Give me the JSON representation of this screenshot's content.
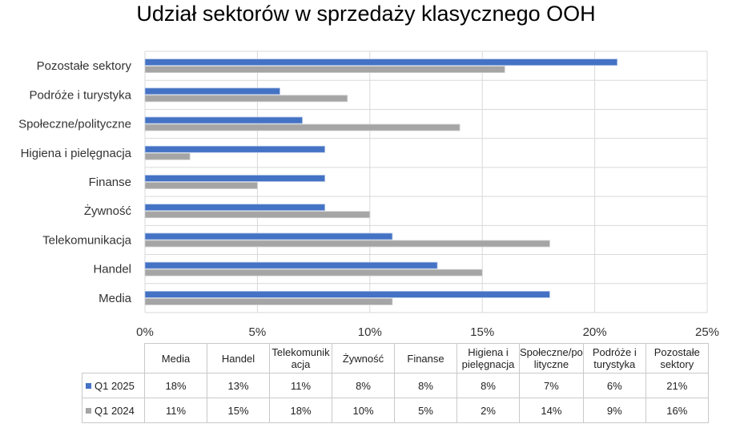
{
  "chart_data": {
    "type": "bar",
    "orientation": "horizontal",
    "title": "Udział sektorów w sprzedaży klasycznego OOH",
    "categories": [
      "Media",
      "Handel",
      "Telekomunikacja",
      "Żywność",
      "Finanse",
      "Higiena i pielęgnacja",
      "Społeczne/polityczne",
      "Podróże i turystyka",
      "Pozostałe sektory"
    ],
    "table_headers": [
      "Media",
      "Handel",
      "Telekomunik acja",
      "Żywność",
      "Finanse",
      "Higiena i pielęgnacja",
      "Społeczne/po lityczne",
      "Podróże i turystyka",
      "Pozostałe sektory"
    ],
    "series": [
      {
        "name": "Q1 2025",
        "color": "#4472c4",
        "values": [
          18,
          13,
          11,
          8,
          8,
          8,
          7,
          6,
          21
        ],
        "labels": [
          "18%",
          "13%",
          "11%",
          "8%",
          "8%",
          "8%",
          "7%",
          "6%",
          "21%"
        ]
      },
      {
        "name": "Q1 2024",
        "color": "#a5a5a5",
        "values": [
          11,
          15,
          18,
          10,
          5,
          2,
          14,
          9,
          16
        ],
        "labels": [
          "11%",
          "15%",
          "18%",
          "10%",
          "5%",
          "2%",
          "14%",
          "9%",
          "16%"
        ]
      }
    ],
    "xlim": [
      0,
      25
    ],
    "xticks": [
      0,
      5,
      10,
      15,
      20,
      25
    ],
    "xtick_labels": [
      "0%",
      "5%",
      "10%",
      "15%",
      "20%",
      "25%"
    ],
    "grid": true,
    "legend": "data-table"
  }
}
